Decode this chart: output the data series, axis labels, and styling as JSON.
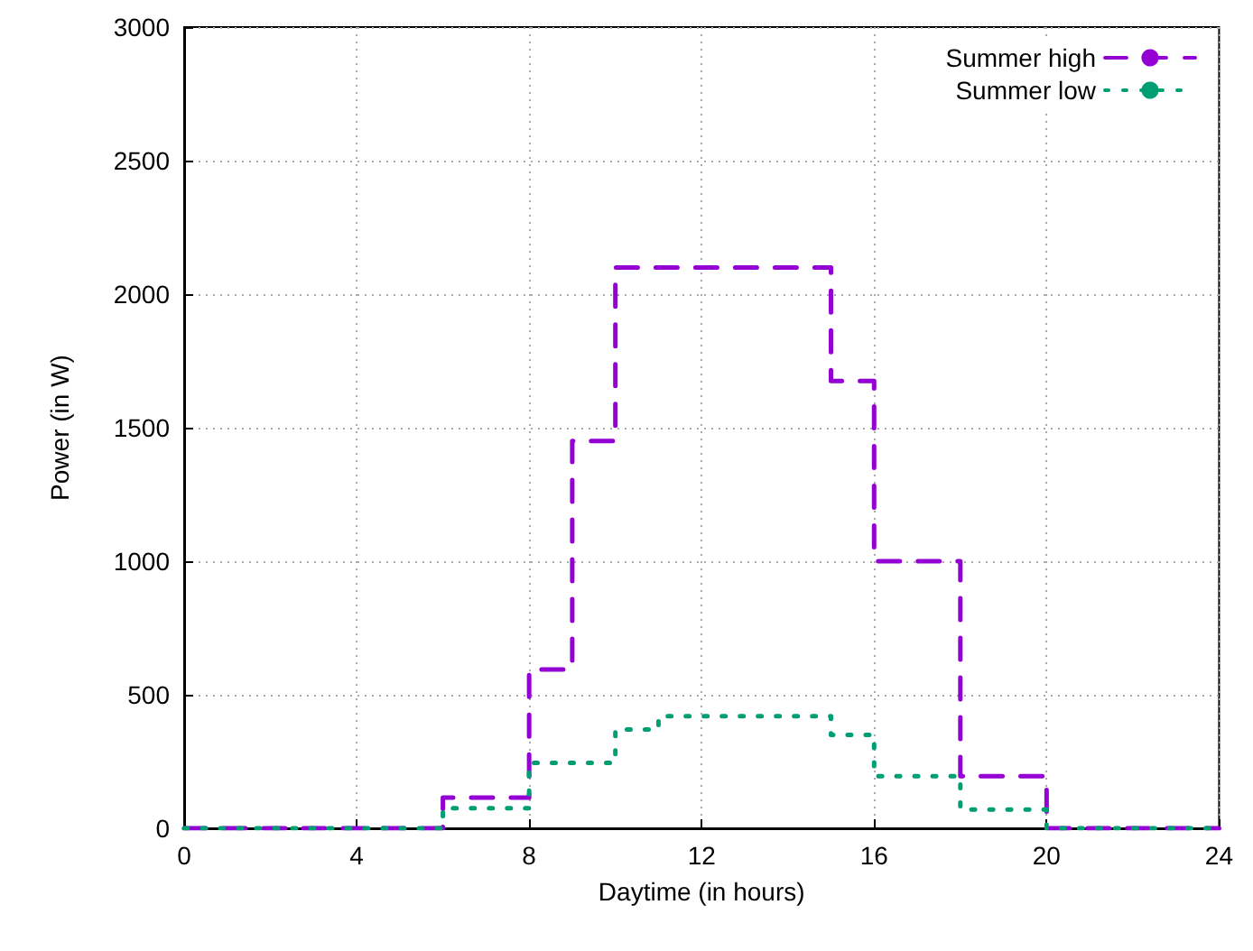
{
  "chart_data": {
    "type": "step",
    "xlabel": "Daytime (in hours)",
    "ylabel": "Power (in W)",
    "x": [
      0,
      6,
      8,
      9,
      10,
      11,
      15,
      16,
      18,
      20,
      24
    ],
    "series": [
      {
        "name": "Summer high",
        "color": "#9400d3",
        "line_style": "dashed",
        "values": [
          0,
          115,
          595,
          1450,
          2100,
          2100,
          1675,
          1000,
          195,
          0,
          0
        ]
      },
      {
        "name": "Summer low",
        "color": "#009e73",
        "line_style": "dotted",
        "values": [
          0,
          75,
          245,
          245,
          370,
          420,
          350,
          195,
          70,
          0,
          0
        ]
      }
    ],
    "xlim": [
      0,
      24
    ],
    "xticks": [
      0,
      4,
      8,
      12,
      16,
      20,
      24
    ],
    "ylim": [
      0,
      3000
    ],
    "yticks": [
      0,
      500,
      1000,
      1500,
      2000,
      2500,
      3000
    ],
    "grid": true,
    "legend": "top right"
  }
}
